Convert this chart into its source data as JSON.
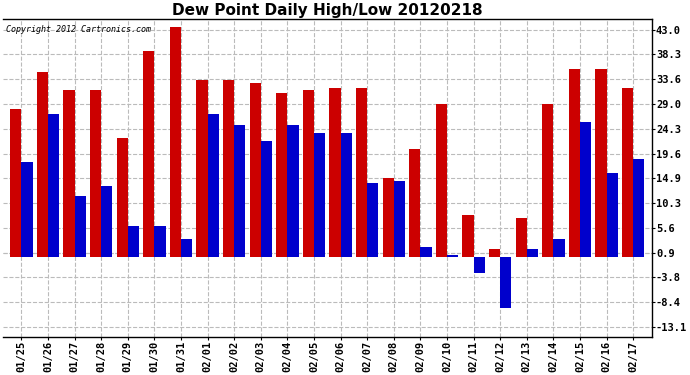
{
  "title": "Dew Point Daily High/Low 20120218",
  "copyright": "Copyright 2012 Cartronics.com",
  "dates": [
    "01/25",
    "01/26",
    "01/27",
    "01/28",
    "01/29",
    "01/30",
    "01/31",
    "02/01",
    "02/02",
    "02/03",
    "02/04",
    "02/05",
    "02/06",
    "02/07",
    "02/08",
    "02/09",
    "02/10",
    "02/11",
    "02/12",
    "02/13",
    "02/14",
    "02/15",
    "02/16",
    "02/17"
  ],
  "highs": [
    28.0,
    35.0,
    31.5,
    31.5,
    22.5,
    39.0,
    43.5,
    33.5,
    33.5,
    33.0,
    31.0,
    31.5,
    32.0,
    32.0,
    15.0,
    20.5,
    29.0,
    8.0,
    1.5,
    7.5,
    29.0,
    35.5,
    35.5,
    32.0
  ],
  "lows": [
    18.0,
    27.0,
    11.5,
    13.5,
    6.0,
    6.0,
    3.5,
    27.0,
    25.0,
    22.0,
    25.0,
    23.5,
    23.5,
    14.0,
    14.5,
    2.0,
    0.5,
    -3.0,
    -9.5,
    1.5,
    3.5,
    25.5,
    16.0,
    18.5
  ],
  "high_color": "#cc0000",
  "low_color": "#0000cc",
  "yticks": [
    43.0,
    38.3,
    33.6,
    29.0,
    24.3,
    19.6,
    14.9,
    10.3,
    5.6,
    0.9,
    -3.8,
    -8.4,
    -13.1
  ],
  "ylim": [
    -15.0,
    45.0
  ],
  "bg_color": "#ffffff",
  "grid_color": "#bbbbbb",
  "bar_width": 0.42,
  "title_fontsize": 11,
  "tick_fontsize": 7.5,
  "figsize": [
    6.9,
    3.75
  ],
  "dpi": 100
}
